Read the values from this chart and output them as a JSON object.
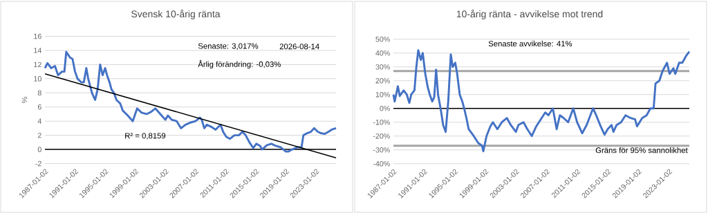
{
  "chart_data": [
    {
      "type": "line",
      "title": "Svensk 10-årig ränta",
      "ylabel": "%",
      "xlim": [
        "1987-01-02",
        "2025-09"
      ],
      "xticks": [
        "1987-01-02",
        "1991-01-02",
        "1995-01-02",
        "1999-01-02",
        "2003-01-02",
        "2007-01-02",
        "2011-01-02",
        "2015-01-02",
        "2019-01-02",
        "2023-01-02"
      ],
      "ylim": [
        -2,
        16
      ],
      "yticks": [
        -2,
        0,
        2,
        4,
        6,
        8,
        10,
        12,
        14,
        16
      ],
      "grid": "y",
      "marker": "none",
      "line_style": "solid",
      "series": [
        {
          "color": "#4472c4",
          "x": [
            "1987-01-02",
            "1987-05",
            "1987-11",
            "1988-05",
            "1988-10",
            "1989-04",
            "1989-08",
            "1989-11",
            "1990-05",
            "1990-09",
            "1991-01",
            "1991-05",
            "1991-11",
            "1992-03",
            "1992-07",
            "1992-10",
            "1993-04",
            "1993-09",
            "1994-01",
            "1994-05",
            "1994-09",
            "1995-01",
            "1995-04",
            "1995-08",
            "1995-11",
            "1996-03",
            "1996-07",
            "1997-01",
            "1997-05",
            "1998-01",
            "1998-09",
            "1999-04",
            "1999-11",
            "2000-07",
            "2001-02",
            "2001-09",
            "2002-05",
            "2003-01",
            "2003-05",
            "2003-11",
            "2004-07",
            "2005-02",
            "2005-09",
            "2006-05",
            "2007-01",
            "2007-08",
            "2007-11",
            "2008-03",
            "2008-07",
            "2009-02",
            "2009-09",
            "2010-05",
            "2010-09",
            "2011-02",
            "2011-08",
            "2012-03",
            "2012-10",
            "2013-04",
            "2013-09",
            "2014-03",
            "2014-09",
            "2015-02",
            "2015-08",
            "2015-11",
            "2016-07",
            "2017-02",
            "2017-09",
            "2018-05",
            "2019-01",
            "2019-05",
            "2019-11",
            "2020-07",
            "2021-02",
            "2021-05",
            "2021-11",
            "2022-05",
            "2022-10",
            "2023-04",
            "2023-09",
            "2024-03",
            "2024-09",
            "2025-02",
            "2025-09"
          ],
          "values": [
            11.5,
            12.2,
            11.5,
            11.8,
            10.5,
            11.0,
            11.0,
            13.8,
            13.0,
            12.8,
            11.0,
            10.0,
            9.5,
            9.5,
            11.5,
            10.0,
            8.0,
            7.0,
            8.5,
            12.0,
            10.5,
            11.5,
            10.5,
            9.5,
            8.5,
            8.0,
            7.0,
            6.5,
            5.5,
            4.8,
            4.0,
            5.8,
            5.2,
            5.0,
            5.3,
            5.8,
            5.0,
            4.2,
            4.8,
            4.2,
            4.0,
            3.0,
            3.5,
            3.8,
            4.0,
            4.5,
            4.2,
            3.0,
            3.5,
            3.2,
            2.8,
            3.5,
            2.5,
            1.8,
            1.5,
            2.0,
            2.0,
            2.5,
            2.0,
            1.0,
            0.2,
            0.8,
            0.5,
            0.0,
            0.6,
            0.8,
            0.5,
            0.3,
            -0.3,
            -0.3,
            0.0,
            0.3,
            0.3,
            2.0,
            2.3,
            2.5,
            3.0,
            2.5,
            2.3,
            2.2,
            2.5,
            2.8,
            3.0
          ]
        },
        {
          "color": "#000000",
          "x": [
            "1987-01-02",
            "2025-09"
          ],
          "values": [
            10.7,
            -1.2
          ]
        }
      ],
      "ref_lines": [
        {
          "axis": "y",
          "value": 0,
          "color": "#000000"
        }
      ],
      "annotations": [
        "Senaste: 3,017%",
        "2026-08-14",
        "Årlig förändring: -0,03%",
        "R² = 0,8159"
      ]
    },
    {
      "type": "line",
      "title": "10-årig ränta - avvikelse mot trend",
      "xlim": [
        "1987-01-02",
        "2025-09"
      ],
      "xticks": [
        "1987-01-02",
        "1991-01-02",
        "1995-01-02",
        "1999-01-02",
        "2003-01-02",
        "2007-01-02",
        "2011-01-02",
        "2015-01-02",
        "2019-01-02",
        "2023-01-02"
      ],
      "ylim": [
        -40,
        50
      ],
      "yticks": [
        {
          "value": -40,
          "label": "-40%"
        },
        {
          "value": -30,
          "label": "-30%"
        },
        {
          "value": -20,
          "label": "-20%"
        },
        {
          "value": -10,
          "label": "-10%"
        },
        {
          "value": 0,
          "label": "0%"
        },
        {
          "value": 10,
          "label": "10%"
        },
        {
          "value": 20,
          "label": "20%"
        },
        {
          "value": 30,
          "label": "30%"
        },
        {
          "value": 40,
          "label": "40%"
        },
        {
          "value": 50,
          "label": "50%"
        }
      ],
      "grid": "y",
      "marker": "none",
      "line_style": "solid",
      "series": [
        {
          "color": "#4472c4",
          "x": [
            "1987-01-02",
            "1987-03",
            "1987-08",
            "1987-11",
            "1988-05",
            "1988-10",
            "1989-02",
            "1989-05",
            "1989-10",
            "1990-01",
            "1990-04",
            "1990-08",
            "1990-11",
            "1991-03",
            "1991-07",
            "1991-10",
            "1992-02",
            "1992-05",
            "1992-08",
            "1992-11",
            "1993-03",
            "1993-07",
            "1993-11",
            "1994-03",
            "1994-07",
            "1994-10",
            "1995-02",
            "1995-05",
            "1995-09",
            "1996-01",
            "1996-04",
            "1996-08",
            "1996-11",
            "1997-07",
            "1998-02",
            "1998-08",
            "1998-10",
            "1999-03",
            "1999-09",
            "2000-01",
            "2000-08",
            "2001-03",
            "2001-11",
            "2002-05",
            "2003-01",
            "2003-05",
            "2004-01",
            "2004-07",
            "2005-02",
            "2005-09",
            "2006-04",
            "2006-11",
            "2007-04",
            "2007-11",
            "2008-05",
            "2008-10",
            "2009-04",
            "2009-11",
            "2010-07",
            "2011-01",
            "2011-09",
            "2012-04",
            "2013-02",
            "2013-07",
            "2014-02",
            "2014-08",
            "2015-01",
            "2015-07",
            "2015-10",
            "2016-03",
            "2016-10",
            "2017-05",
            "2018-01",
            "2018-08",
            "2018-11",
            "2019-07",
            "2020-02",
            "2020-08",
            "2021-01",
            "2021-04",
            "2021-10",
            "2022-03",
            "2022-10",
            "2023-02",
            "2023-08",
            "2023-11",
            "2024-05",
            "2024-10",
            "2025-04",
            "2025-09"
          ],
          "values": [
            10,
            5,
            16,
            9,
            13,
            10,
            4,
            10,
            13,
            30,
            42,
            35,
            40,
            25,
            15,
            10,
            5,
            8,
            28,
            10,
            0,
            -12,
            -17,
            5,
            39,
            30,
            33,
            25,
            10,
            5,
            0,
            -8,
            -15,
            -20,
            -25,
            -27,
            -31,
            -20,
            -13,
            -10,
            -15,
            -10,
            -7,
            -12,
            -17,
            -12,
            -10,
            -15,
            -20,
            -13,
            -8,
            -3,
            -5,
            0,
            -15,
            -5,
            -7,
            -10,
            0,
            -10,
            -18,
            -12,
            0,
            -5,
            -13,
            -19,
            -15,
            -12,
            -17,
            -12,
            -10,
            -5,
            -7,
            -8,
            -13,
            -7,
            -5,
            0,
            0,
            18,
            20,
            27,
            33,
            25,
            29,
            25,
            33,
            33,
            38,
            41
          ]
        }
      ],
      "ref_lines": [
        {
          "axis": "y",
          "value": 0,
          "color": "#000000"
        },
        {
          "axis": "y",
          "value": 27,
          "color": "#a6a6a6"
        },
        {
          "axis": "y",
          "value": -27,
          "color": "#a6a6a6",
          "label": "Gräns för 95% sannolikhet"
        }
      ],
      "annotations": [
        "Senaste avvikelse: 41%"
      ]
    }
  ]
}
